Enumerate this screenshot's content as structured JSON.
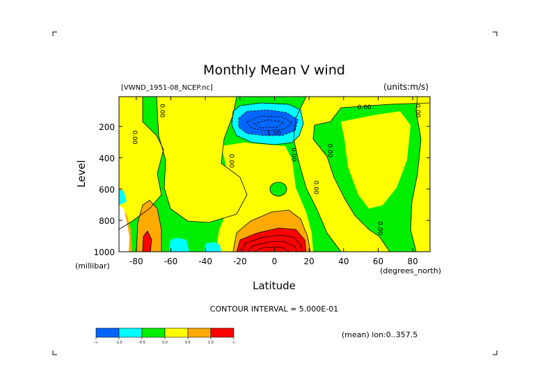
{
  "chart_data": {
    "type": "contour",
    "title": "Monthly Mean V wind",
    "dataset_label": "[VWND_1951-08_NCEP.nc]",
    "units_label": "(units:m/s)",
    "xlabel": "Latitude",
    "ylabel": "Level",
    "x_units": "(degrees_north)",
    "y_units": "(millibar)",
    "xlim": [
      -90,
      90
    ],
    "ylim": [
      1000,
      10
    ],
    "x_ticks": [
      "-80",
      "-60",
      "-40",
      "-20",
      "0",
      "20",
      "40",
      "60",
      "80"
    ],
    "x_tick_values": [
      -80,
      -60,
      -40,
      -20,
      0,
      20,
      40,
      60,
      80
    ],
    "y_ticks": [
      "200",
      "400",
      "600",
      "800",
      "1000"
    ],
    "y_tick_values": [
      200,
      400,
      600,
      800,
      1000
    ],
    "contour_interval": "CONTOUR INTERVAL = 5.000E-01",
    "footnote": "(mean) lon:0..357.5",
    "contour_labels": [
      {
        "text": "0.00",
        "x": 52,
        "y": 90
      },
      {
        "text": "0.00",
        "x": -66,
        "y": 100,
        "vertical": true
      },
      {
        "text": "0.00",
        "x": 82,
        "y": 100,
        "vertical": true
      },
      {
        "text": "0.00",
        "x": -82,
        "y": 270,
        "vertical": true
      },
      {
        "text": "0.00",
        "x": -26,
        "y": 420,
        "vertical": true
      },
      {
        "text": "0.00",
        "x": 10,
        "y": 380,
        "vertical": true
      },
      {
        "text": "0.00",
        "x": 31,
        "y": 355,
        "vertical": true
      },
      {
        "text": "0.00",
        "x": 23,
        "y": 590,
        "vertical": true
      },
      {
        "text": "0.00",
        "x": 60,
        "y": 850,
        "vertical": true
      },
      {
        "text": "-1.00",
        "x": -1,
        "y": 255
      }
    ],
    "colorbar": {
      "colors": [
        "#0066ff",
        "#00ffff",
        "#00ee00",
        "#ffff00",
        "#ffaa00",
        "#ff0000"
      ],
      "labels": [
        "-∞",
        "-1.5",
        "-0.5",
        "0.0",
        "0.5",
        "1.0",
        "∞"
      ]
    }
  }
}
